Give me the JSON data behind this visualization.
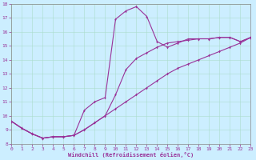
{
  "xlabel": "Windchill (Refroidissement éolien,°C)",
  "background_color": "#cceeff",
  "line_color": "#993399",
  "xlim": [
    0,
    23
  ],
  "ylim": [
    8,
    18
  ],
  "xticks": [
    0,
    1,
    2,
    3,
    4,
    5,
    6,
    7,
    8,
    9,
    10,
    11,
    12,
    13,
    14,
    15,
    16,
    17,
    18,
    19,
    20,
    21,
    22,
    23
  ],
  "yticks": [
    8,
    9,
    10,
    11,
    12,
    13,
    14,
    15,
    16,
    17,
    18
  ],
  "curve1_x": [
    0,
    1,
    2,
    3,
    4,
    5,
    6,
    7,
    8,
    9,
    10,
    11,
    12,
    13,
    14,
    15,
    16,
    17,
    18,
    19,
    20,
    21,
    22,
    23
  ],
  "curve1_y": [
    9.6,
    9.1,
    8.7,
    8.4,
    8.5,
    8.5,
    8.6,
    9.0,
    9.5,
    10.0,
    10.5,
    11.0,
    11.5,
    12.0,
    12.5,
    13.0,
    13.4,
    13.7,
    14.0,
    14.3,
    14.6,
    14.9,
    15.2,
    15.6
  ],
  "curve2_x": [
    0,
    1,
    2,
    3,
    4,
    5,
    6,
    7,
    8,
    9,
    10,
    11,
    12,
    13,
    14,
    15,
    16,
    17,
    18,
    19,
    20,
    21,
    22,
    23
  ],
  "curve2_y": [
    9.6,
    9.1,
    8.7,
    8.4,
    8.5,
    8.5,
    8.6,
    9.0,
    9.5,
    10.0,
    11.5,
    13.3,
    14.1,
    14.5,
    14.9,
    15.2,
    15.3,
    15.4,
    15.5,
    15.5,
    15.6,
    15.6,
    15.3,
    15.6
  ],
  "curve3_x": [
    0,
    1,
    2,
    3,
    4,
    5,
    6,
    7,
    8,
    9,
    10,
    11,
    12,
    13,
    14,
    15,
    16,
    17,
    18,
    19,
    20,
    21,
    22,
    23
  ],
  "curve3_y": [
    9.6,
    9.1,
    8.7,
    8.4,
    8.5,
    8.5,
    8.6,
    10.4,
    11.0,
    11.3,
    16.9,
    17.5,
    17.8,
    17.1,
    15.3,
    14.9,
    15.2,
    15.5,
    15.5,
    15.5,
    15.6,
    15.6,
    15.3,
    15.6
  ]
}
